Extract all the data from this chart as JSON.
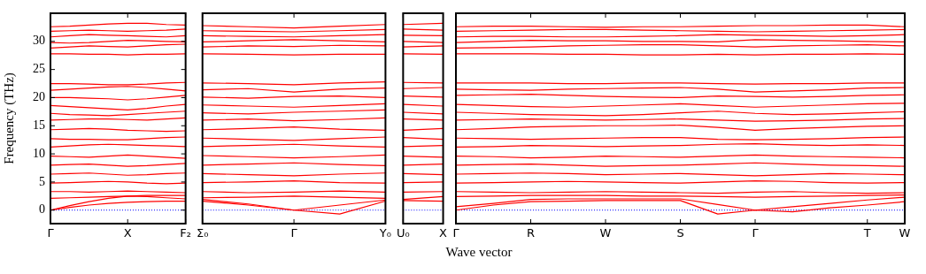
{
  "chart_data": [
    {
      "type": "line",
      "color": "#ff0000",
      "ylabel": "Frequency (THz)",
      "ylim": [
        -2.4,
        35
      ],
      "yticks": [
        0,
        5,
        10,
        15,
        20,
        25,
        30
      ],
      "categories": [
        "Γ",
        null,
        null,
        null,
        "X",
        null,
        null,
        "F₂"
      ],
      "ref_lines": [
        {
          "axis": "y",
          "value": 0,
          "color": "#0000ff",
          "line_style": "dotted"
        }
      ],
      "series": [
        {
          "values": [
            32.6,
            32.7,
            32.9,
            33.1,
            33.2,
            33.2,
            33.0,
            32.9
          ]
        },
        {
          "values": [
            31.8,
            31.9,
            32.0,
            31.9,
            31.8,
            31.9,
            32.0,
            32.2
          ]
        },
        {
          "values": [
            30.8,
            31.0,
            31.2,
            31.1,
            31.0,
            30.9,
            30.8,
            31.0
          ]
        },
        {
          "values": [
            29.8,
            29.7,
            29.8,
            30.0,
            30.2,
            30.1,
            30.0,
            29.9
          ]
        },
        {
          "values": [
            28.8,
            29.0,
            29.2,
            29.1,
            29.0,
            29.2,
            29.4,
            29.5
          ]
        },
        {
          "values": [
            27.8,
            27.8,
            27.7,
            27.7,
            27.6,
            27.7,
            27.7,
            27.8
          ]
        },
        {
          "values": [
            22.5,
            22.5,
            22.4,
            22.3,
            22.3,
            22.4,
            22.6,
            22.7
          ]
        },
        {
          "values": [
            21.3,
            21.5,
            21.7,
            21.9,
            22.0,
            21.8,
            21.5,
            21.2
          ]
        },
        {
          "values": [
            20.0,
            20.0,
            19.9,
            19.8,
            19.6,
            19.8,
            20.1,
            20.4
          ]
        },
        {
          "values": [
            18.6,
            18.4,
            18.2,
            18.0,
            17.8,
            18.1,
            18.5,
            18.8
          ]
        },
        {
          "values": [
            17.2,
            17.0,
            16.9,
            16.8,
            17.0,
            17.2,
            17.4,
            17.6
          ]
        },
        {
          "values": [
            16.0,
            16.1,
            16.2,
            16.2,
            16.1,
            16.0,
            16.2,
            16.4
          ]
        },
        {
          "values": [
            14.3,
            14.4,
            14.5,
            14.4,
            14.2,
            14.1,
            14.0,
            14.1
          ]
        },
        {
          "values": [
            12.7,
            12.6,
            12.6,
            12.5,
            12.5,
            12.7,
            12.9,
            13.0
          ]
        },
        {
          "values": [
            11.2,
            11.4,
            11.6,
            11.7,
            11.6,
            11.5,
            11.4,
            11.3
          ]
        },
        {
          "values": [
            9.6,
            9.5,
            9.4,
            9.6,
            9.8,
            9.6,
            9.4,
            9.2
          ]
        },
        {
          "values": [
            8.0,
            8.1,
            8.2,
            8.0,
            7.8,
            7.9,
            8.1,
            8.3
          ]
        },
        {
          "values": [
            6.4,
            6.5,
            6.6,
            6.4,
            6.2,
            6.3,
            6.5,
            6.6
          ]
        },
        {
          "values": [
            4.8,
            4.9,
            5.0,
            5.1,
            5.0,
            4.8,
            4.7,
            4.8
          ]
        },
        {
          "values": [
            3.3,
            3.3,
            3.2,
            3.3,
            3.4,
            3.3,
            3.2,
            3.1
          ]
        },
        {
          "values": [
            2.1,
            2.2,
            2.3,
            2.4,
            2.5,
            2.4,
            2.2,
            2.0
          ]
        },
        {
          "values": [
            0,
            0.8,
            1.5,
            2.1,
            2.5,
            2.6,
            2.6,
            2.6
          ]
        },
        {
          "values": [
            0,
            0.5,
            0.9,
            1.2,
            1.4,
            1.5,
            1.6,
            1.6
          ]
        }
      ]
    },
    {
      "type": "line",
      "color": "#ff0000",
      "tick_labels": "x",
      "ylim": [
        -2.4,
        35
      ],
      "categories": [
        "Σ₀",
        null,
        "Γ",
        null,
        "Y₀"
      ],
      "ref_lines": [
        {
          "axis": "y",
          "value": 0,
          "color": "#0000ff",
          "line_style": "dotted"
        }
      ],
      "series": [
        {
          "values": [
            32.8,
            32.6,
            32.4,
            32.7,
            33.0
          ]
        },
        {
          "values": [
            31.9,
            31.8,
            31.7,
            31.9,
            32.1
          ]
        },
        {
          "values": [
            31.0,
            30.9,
            30.8,
            31.0,
            31.2
          ]
        },
        {
          "values": [
            29.9,
            30.1,
            30.3,
            30.1,
            29.9
          ]
        },
        {
          "values": [
            29.0,
            29.2,
            29.1,
            29.3,
            29.2
          ]
        },
        {
          "values": [
            27.8,
            27.7,
            27.6,
            27.7,
            27.7
          ]
        },
        {
          "values": [
            22.6,
            22.5,
            22.3,
            22.6,
            22.8
          ]
        },
        {
          "values": [
            21.4,
            21.6,
            21.0,
            21.5,
            21.7
          ]
        },
        {
          "values": [
            20.1,
            19.9,
            20.2,
            20.3,
            20.0
          ]
        },
        {
          "values": [
            18.7,
            18.5,
            18.3,
            18.6,
            18.9
          ]
        },
        {
          "values": [
            17.3,
            17.1,
            17.4,
            17.6,
            17.8
          ]
        },
        {
          "values": [
            16.0,
            16.2,
            15.9,
            16.1,
            16.4
          ]
        },
        {
          "values": [
            14.3,
            14.5,
            14.8,
            14.4,
            14.2
          ]
        },
        {
          "values": [
            12.8,
            12.6,
            12.4,
            12.7,
            13.0
          ]
        },
        {
          "values": [
            11.3,
            11.5,
            11.7,
            11.4,
            11.2
          ]
        },
        {
          "values": [
            9.7,
            9.5,
            9.3,
            9.5,
            9.8
          ]
        },
        {
          "values": [
            8.0,
            8.2,
            8.4,
            8.1,
            7.9
          ]
        },
        {
          "values": [
            6.5,
            6.3,
            6.1,
            6.4,
            6.6
          ]
        },
        {
          "values": [
            4.9,
            5.0,
            5.2,
            4.9,
            4.8
          ]
        },
        {
          "values": [
            3.3,
            3.1,
            3.2,
            3.4,
            3.2
          ]
        },
        {
          "values": [
            2.2,
            2.3,
            2.5,
            2.3,
            2.1
          ]
        },
        {
          "values": [
            1.6,
            0.9,
            0,
            -0.7,
            1.6
          ]
        },
        {
          "values": [
            1.9,
            1.1,
            0,
            0.9,
            1.8
          ]
        }
      ]
    },
    {
      "type": "line",
      "color": "#ff0000",
      "tick_labels": "x",
      "ylim": [
        -2.4,
        35
      ],
      "categories": [
        "U₀",
        "X"
      ],
      "ref_lines": [
        {
          "axis": "y",
          "value": 0,
          "color": "#0000ff",
          "line_style": "dotted"
        }
      ],
      "series": [
        {
          "values": [
            33.0,
            33.2
          ]
        },
        {
          "values": [
            32.2,
            32.0
          ]
        },
        {
          "values": [
            31.1,
            31.0
          ]
        },
        {
          "values": [
            30.0,
            29.8
          ]
        },
        {
          "values": [
            29.0,
            29.2
          ]
        },
        {
          "values": [
            27.8,
            27.7
          ]
        },
        {
          "values": [
            22.7,
            22.6
          ]
        },
        {
          "values": [
            21.6,
            21.8
          ]
        },
        {
          "values": [
            20.3,
            20.1
          ]
        },
        {
          "values": [
            18.8,
            18.5
          ]
        },
        {
          "values": [
            17.4,
            17.1
          ]
        },
        {
          "values": [
            16.2,
            16.0
          ]
        },
        {
          "values": [
            14.2,
            14.5
          ]
        },
        {
          "values": [
            12.9,
            12.6
          ]
        },
        {
          "values": [
            11.3,
            11.5
          ]
        },
        {
          "values": [
            9.6,
            9.4
          ]
        },
        {
          "values": [
            8.0,
            8.2
          ]
        },
        {
          "values": [
            6.5,
            6.3
          ]
        },
        {
          "values": [
            4.9,
            5.0
          ]
        },
        {
          "values": [
            3.2,
            3.3
          ]
        },
        {
          "values": [
            1.9,
            2.4
          ]
        },
        {
          "values": [
            1.7,
            1.6
          ]
        }
      ]
    },
    {
      "type": "line",
      "color": "#ff0000",
      "tick_labels": "x",
      "xlabel": "Wave vector",
      "ylim": [
        -2.4,
        35
      ],
      "categories": [
        "Γ",
        null,
        "R",
        null,
        "W",
        null,
        "S",
        null,
        "Γ",
        null,
        null,
        "T",
        "W"
      ],
      "ref_lines": [
        {
          "axis": "y",
          "value": 0,
          "color": "#0000ff",
          "line_style": "dotted"
        }
      ],
      "series": [
        {
          "values": [
            32.6,
            32.7,
            32.7,
            32.6,
            32.5,
            32.6,
            32.6,
            32.7,
            32.8,
            32.8,
            32.9,
            32.9,
            32.6
          ]
        },
        {
          "values": [
            31.8,
            31.9,
            32.0,
            32.1,
            32.1,
            32.0,
            31.9,
            31.8,
            31.7,
            31.8,
            31.9,
            32.0,
            32.1
          ]
        },
        {
          "values": [
            30.8,
            30.9,
            30.9,
            30.8,
            30.8,
            30.9,
            31.0,
            31.2,
            31.1,
            31.0,
            30.9,
            31.0,
            31.2
          ]
        },
        {
          "values": [
            29.8,
            30.0,
            30.2,
            30.1,
            30.1,
            30.0,
            30.0,
            29.9,
            30.3,
            30.2,
            30.1,
            30.0,
            29.9
          ]
        },
        {
          "values": [
            28.8,
            28.9,
            29.0,
            29.2,
            29.3,
            29.4,
            29.4,
            29.2,
            29.0,
            29.2,
            29.3,
            29.4,
            29.2
          ]
        },
        {
          "values": [
            27.8,
            27.8,
            27.8,
            27.7,
            27.7,
            27.6,
            27.6,
            27.7,
            27.6,
            27.7,
            27.7,
            27.8,
            27.7
          ]
        },
        {
          "values": [
            22.6,
            22.6,
            22.6,
            22.5,
            22.5,
            22.6,
            22.6,
            22.5,
            22.4,
            22.5,
            22.5,
            22.6,
            22.6
          ]
        },
        {
          "values": [
            21.5,
            21.4,
            21.3,
            21.5,
            21.6,
            21.7,
            21.8,
            21.5,
            21.0,
            21.2,
            21.4,
            21.7,
            21.8
          ]
        },
        {
          "values": [
            20.4,
            20.5,
            20.6,
            20.4,
            20.2,
            20.1,
            20.0,
            20.3,
            20.2,
            20.1,
            20.2,
            20.4,
            20.5
          ]
        },
        {
          "values": [
            18.8,
            18.6,
            18.4,
            18.3,
            18.5,
            18.7,
            18.9,
            18.6,
            18.3,
            18.5,
            18.7,
            18.9,
            19.0
          ]
        },
        {
          "values": [
            17.4,
            17.2,
            17.0,
            16.9,
            16.8,
            17.0,
            17.3,
            17.6,
            17.2,
            17.0,
            17.1,
            17.3,
            17.5
          ]
        },
        {
          "values": [
            16.0,
            16.1,
            16.2,
            16.1,
            16.0,
            16.1,
            16.2,
            16.0,
            15.8,
            15.9,
            16.0,
            16.2,
            16.3
          ]
        },
        {
          "values": [
            14.3,
            14.5,
            14.8,
            14.9,
            15.0,
            15.0,
            15.1,
            14.7,
            14.2,
            14.5,
            14.7,
            14.9,
            15.0
          ]
        },
        {
          "values": [
            12.8,
            12.7,
            12.6,
            12.7,
            12.8,
            12.9,
            12.9,
            12.6,
            12.5,
            12.6,
            12.7,
            12.9,
            13.0
          ]
        },
        {
          "values": [
            11.2,
            11.3,
            11.5,
            11.4,
            11.3,
            11.4,
            11.5,
            11.7,
            11.8,
            11.6,
            11.5,
            11.6,
            11.5
          ]
        },
        {
          "values": [
            9.6,
            9.5,
            9.3,
            9.4,
            9.6,
            9.5,
            9.4,
            9.6,
            9.8,
            9.6,
            9.5,
            9.4,
            9.3
          ]
        },
        {
          "values": [
            8.0,
            8.1,
            8.2,
            8.0,
            7.8,
            7.9,
            8.0,
            8.2,
            8.4,
            8.2,
            8.0,
            7.9,
            7.8
          ]
        },
        {
          "values": [
            6.4,
            6.5,
            6.6,
            6.5,
            6.3,
            6.4,
            6.5,
            6.3,
            6.1,
            6.3,
            6.5,
            6.4,
            6.3
          ]
        },
        {
          "values": [
            4.8,
            4.9,
            5.0,
            5.1,
            5.0,
            4.9,
            4.8,
            5.0,
            5.2,
            5.1,
            4.9,
            4.8,
            4.9
          ]
        },
        {
          "values": [
            3.3,
            3.2,
            3.1,
            3.2,
            3.3,
            3.2,
            3.1,
            3.0,
            3.2,
            3.3,
            3.1,
            3.0,
            3.1
          ]
        },
        {
          "values": [
            2.4,
            2.5,
            2.6,
            2.6,
            2.6,
            2.5,
            2.5,
            2.4,
            2.3,
            2.4,
            2.5,
            2.6,
            2.7
          ]
        },
        {
          "values": [
            0,
            0.9,
            1.5,
            1.6,
            1.7,
            1.7,
            1.7,
            -0.7,
            0,
            -0.3,
            0.4,
            0.9,
            1.5
          ]
        },
        {
          "values": [
            0.6,
            1.2,
            1.9,
            2.0,
            2.0,
            2.0,
            2.0,
            1.0,
            0,
            0.6,
            1.2,
            1.8,
            2.3
          ]
        }
      ]
    }
  ]
}
